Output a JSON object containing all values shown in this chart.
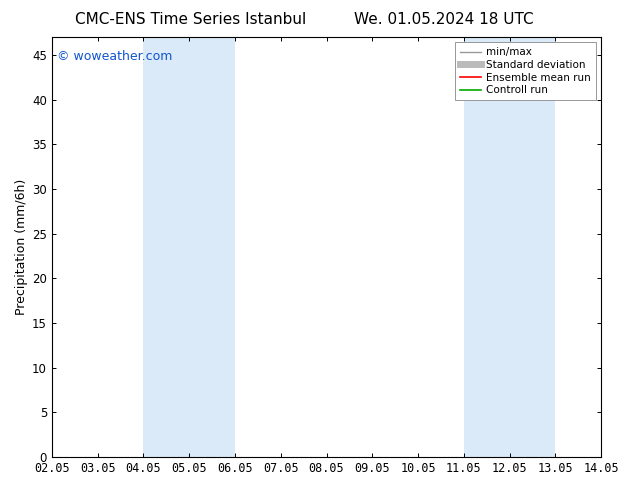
{
  "title_left": "CMC-ENS Time Series Istanbul",
  "title_right": "We. 01.05.2024 18 UTC",
  "ylabel": "Precipitation (mm/6h)",
  "watermark": "© woweather.com",
  "x_ticks": [
    "02.05",
    "03.05",
    "04.05",
    "05.05",
    "06.05",
    "07.05",
    "08.05",
    "09.05",
    "10.05",
    "11.05",
    "12.05",
    "13.05",
    "14.05"
  ],
  "x_tick_values": [
    0,
    1,
    2,
    3,
    4,
    5,
    6,
    7,
    8,
    9,
    10,
    11,
    12
  ],
  "ylim": [
    0,
    47
  ],
  "yticks": [
    0,
    5,
    10,
    15,
    20,
    25,
    30,
    35,
    40,
    45
  ],
  "shaded_regions": [
    {
      "xmin": 2.0,
      "xmax": 4.0,
      "color": "#daeaf8"
    },
    {
      "xmin": 9.0,
      "xmax": 11.0,
      "color": "#daeaf8"
    }
  ],
  "legend_entries": [
    {
      "label": "min/max",
      "color": "#999999",
      "linestyle": "-",
      "linewidth": 1.0
    },
    {
      "label": "Standard deviation",
      "color": "#bbbbbb",
      "linestyle": "-",
      "linewidth": 5
    },
    {
      "label": "Ensemble mean run",
      "color": "#ff0000",
      "linestyle": "-",
      "linewidth": 1.2
    },
    {
      "label": "Controll run",
      "color": "#00aa00",
      "linestyle": "-",
      "linewidth": 1.2
    }
  ],
  "background_color": "#ffffff",
  "plot_bg_color": "#ffffff",
  "watermark_color": "#1155cc",
  "title_fontsize": 11,
  "tick_fontsize": 8.5,
  "ylabel_fontsize": 9,
  "watermark_fontsize": 9
}
